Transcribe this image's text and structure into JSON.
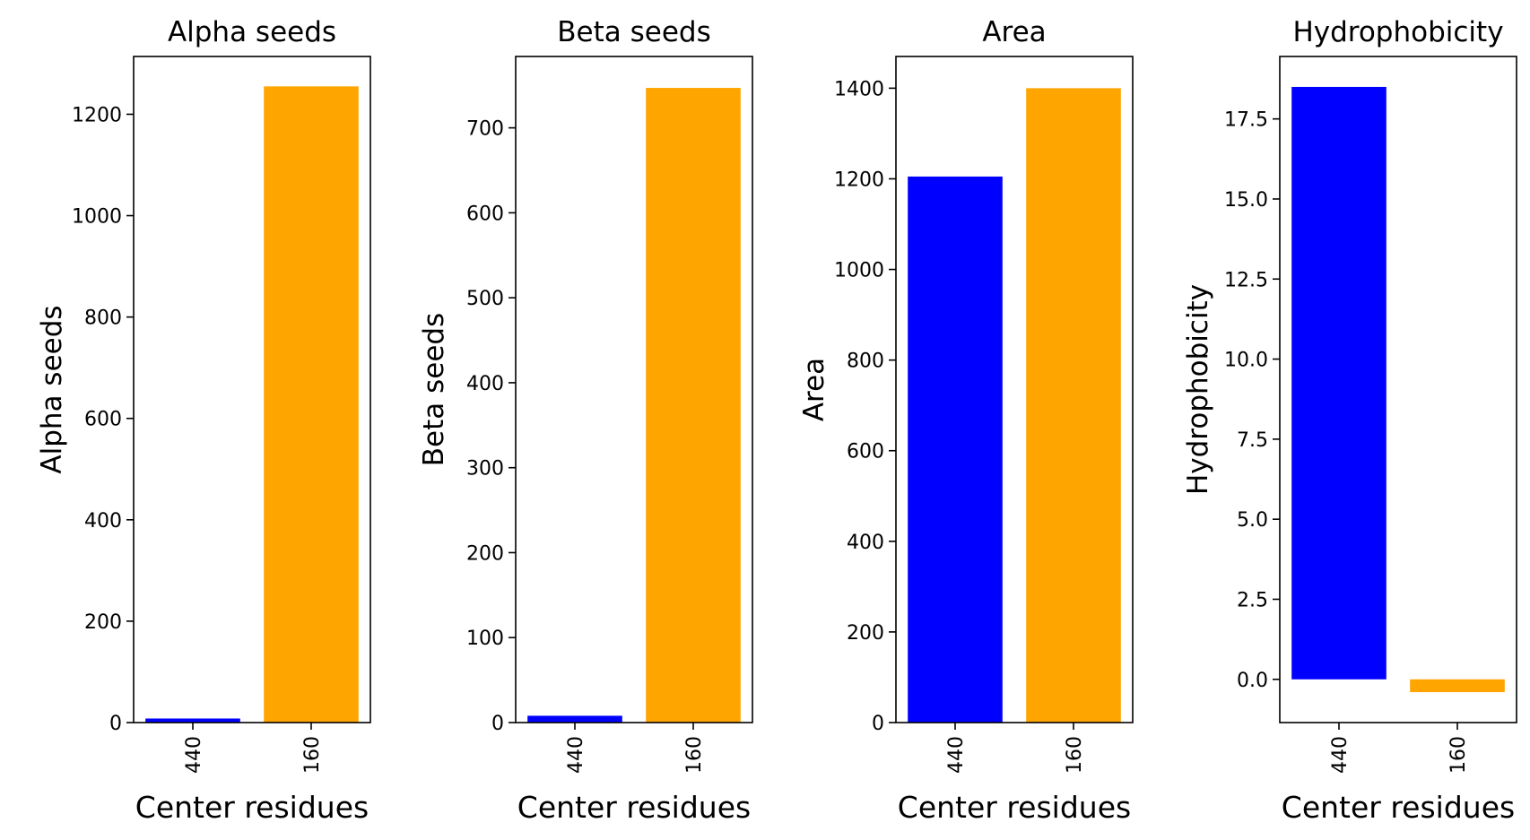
{
  "chart_data": [
    {
      "type": "bar",
      "title": "Alpha seeds",
      "xlabel": "Center residues",
      "ylabel": "Alpha seeds",
      "categories": [
        "440",
        "160"
      ],
      "values": [
        8,
        1255
      ],
      "colors": [
        "#0000ff",
        "#ffa500"
      ],
      "ylim": [
        0,
        1314
      ],
      "yticks": [
        0,
        200,
        400,
        600,
        800,
        1000,
        1200
      ],
      "ytick_labels": [
        "0",
        "200",
        "400",
        "600",
        "800",
        "1000",
        "1200"
      ]
    },
    {
      "type": "bar",
      "title": "Beta seeds",
      "xlabel": "Center residues",
      "ylabel": "Beta seeds",
      "categories": [
        "440",
        "160"
      ],
      "values": [
        8,
        747
      ],
      "colors": [
        "#0000ff",
        "#ffa500"
      ],
      "ylim": [
        0,
        784
      ],
      "yticks": [
        0,
        100,
        200,
        300,
        400,
        500,
        600,
        700
      ],
      "ytick_labels": [
        "0",
        "100",
        "200",
        "300",
        "400",
        "500",
        "600",
        "700"
      ]
    },
    {
      "type": "bar",
      "title": "Area",
      "xlabel": "Center residues",
      "ylabel": "Area",
      "categories": [
        "440",
        "160"
      ],
      "values": [
        1205,
        1400
      ],
      "colors": [
        "#0000ff",
        "#ffa500"
      ],
      "ylim": [
        0,
        1470
      ],
      "yticks": [
        0,
        200,
        400,
        600,
        800,
        1000,
        1200,
        1400
      ],
      "ytick_labels": [
        "0",
        "200",
        "400",
        "600",
        "800",
        "1000",
        "1200",
        "1400"
      ]
    },
    {
      "type": "bar",
      "title": "Hydrophobicity",
      "xlabel": "Center residues",
      "ylabel": "Hydrophobicity",
      "categories": [
        "440",
        "160"
      ],
      "values": [
        18.5,
        -0.4
      ],
      "colors": [
        "#0000ff",
        "#ffa500"
      ],
      "ylim": [
        -1.35,
        19.45
      ],
      "yticks": [
        0,
        2.5,
        5,
        7.5,
        10,
        12.5,
        15,
        17.5
      ],
      "ytick_labels": [
        "0.0",
        "2.5",
        "5.0",
        "7.5",
        "10.0",
        "12.5",
        "15.0",
        "17.5"
      ]
    }
  ]
}
